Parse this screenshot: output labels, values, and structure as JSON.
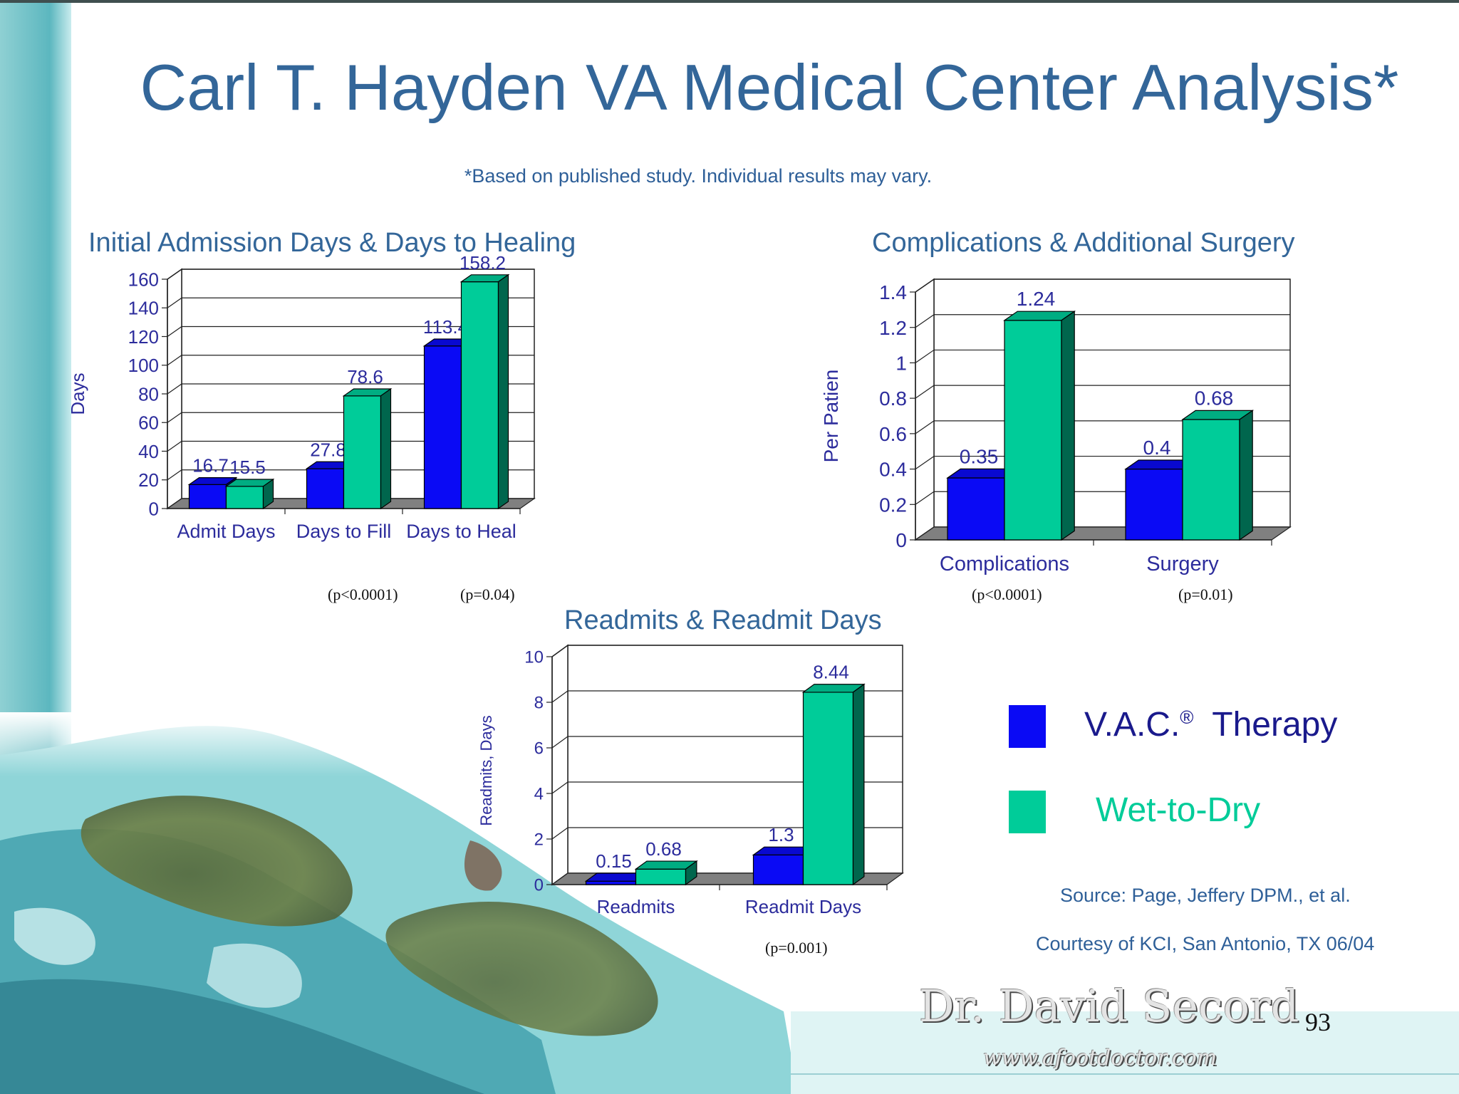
{
  "slide": {
    "title": "Carl T. Hayden VA Medical Center Analysis*",
    "note": "*Based on published study. Individual results may vary.",
    "page_number": "93"
  },
  "colors": {
    "vac": "#0a0af5",
    "wet": "#00cc99",
    "text": "#336699",
    "axis_text": "#2c2c9c"
  },
  "chart_data": [
    {
      "type": "bar",
      "title": "Initial Admission Days & Days to Healing",
      "ylabel": "Days",
      "ylim": [
        0,
        160
      ],
      "yticks": [
        0,
        20,
        40,
        60,
        80,
        100,
        120,
        140,
        160
      ],
      "ytick_labels": [
        "0",
        "20",
        "40",
        "60",
        "80",
        "100",
        "120",
        "140",
        "160"
      ],
      "categories": [
        "Admit Days",
        "Days to Fill",
        "Days to Heal"
      ],
      "series": [
        {
          "name": "V.A.C.® Therapy",
          "values": [
            16.7,
            27.8,
            113.4
          ],
          "labels": [
            "16.7",
            "27.8",
            "113.4"
          ]
        },
        {
          "name": "Wet-to-Dry",
          "values": [
            15.5,
            78.6,
            158.2
          ],
          "labels": [
            "15.5",
            "78.6",
            "158.2"
          ]
        }
      ],
      "p_values": [
        "",
        "(p<0.0001)",
        "(p=0.04)"
      ],
      "grid": true,
      "style": "3d"
    },
    {
      "type": "bar",
      "title": "Complications & Additional Surgery",
      "ylabel": "Per Patien",
      "ylim": [
        0,
        1.4
      ],
      "yticks": [
        0,
        0.2,
        0.4,
        0.6,
        0.8,
        1.0,
        1.2,
        1.4
      ],
      "ytick_labels": [
        "0",
        "0.2",
        "0.4",
        "0.6",
        "0.8",
        "1",
        "1.2",
        "1.4"
      ],
      "categories": [
        "Complications",
        "Surgery"
      ],
      "series": [
        {
          "name": "V.A.C.® Therapy",
          "values": [
            0.35,
            0.4
          ],
          "labels": [
            "0.35",
            "0.4"
          ]
        },
        {
          "name": "Wet-to-Dry",
          "values": [
            1.24,
            0.68
          ],
          "labels": [
            "1.24",
            "0.68"
          ]
        }
      ],
      "p_values": [
        "(p<0.0001)",
        "(p=0.01)"
      ],
      "grid": true,
      "style": "3d"
    },
    {
      "type": "bar",
      "title": "Readmits & Readmit Days",
      "ylabel": "Readmits, Days",
      "ylim": [
        0,
        10
      ],
      "yticks": [
        0,
        2,
        4,
        6,
        8,
        10
      ],
      "ytick_labels": [
        "0",
        "2",
        "4",
        "6",
        "8",
        "10"
      ],
      "categories": [
        "Readmits",
        "Readmit Days"
      ],
      "series": [
        {
          "name": "V.A.C.® Therapy",
          "values": [
            0.15,
            1.3
          ],
          "labels": [
            "0.15",
            "1.3"
          ]
        },
        {
          "name": "Wet-to-Dry",
          "values": [
            0.68,
            8.44
          ],
          "labels": [
            "0.68",
            "8.44"
          ]
        }
      ],
      "p_values": [
        "",
        "(p=0.001)"
      ],
      "grid": true,
      "style": "3d"
    }
  ],
  "legend": {
    "vac_label": "V.A.C.",
    "vac_reg": "®",
    "vac_label_rest": "Therapy",
    "wet_label": "Wet-to-Dry",
    "placement": "right"
  },
  "source": {
    "line1": "Source: Page, Jeffery DPM., et al.",
    "line2": "Courtesy of KCI, San Antonio, TX 06/04"
  },
  "logo": {
    "name": "Dr. David Secord",
    "url": "www.afootdoctor.com"
  }
}
